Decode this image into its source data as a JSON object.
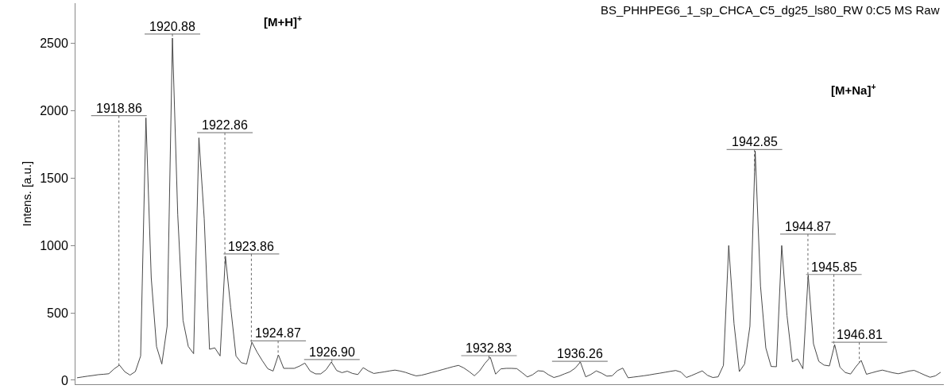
{
  "chart_data": {
    "type": "line",
    "title": "BS_PHHPEG6_1_sp_CHCA_C5_dg25_ls80_RW 0:C5 MS Raw",
    "ylabel": "Intens. [a.u.]",
    "tick_labels": "y",
    "grid": false,
    "marker": "none",
    "line_style": "solid",
    "ylim": [
      -30,
      2800
    ],
    "yticks": [
      0,
      500,
      1000,
      1500,
      2000,
      2500
    ],
    "categories": [
      null,
      null,
      null,
      null,
      null,
      null,
      null,
      null,
      null,
      null,
      null,
      null,
      null,
      null,
      null,
      null,
      null,
      null,
      null,
      null,
      null,
      null,
      null,
      null,
      null,
      null,
      null,
      null,
      null,
      null,
      null,
      null,
      null,
      null,
      null,
      null,
      null,
      null,
      null,
      null,
      null,
      null,
      null,
      null,
      null,
      null,
      null,
      null,
      null,
      null,
      null,
      null,
      null,
      null,
      null,
      null,
      null,
      null,
      null,
      null,
      null,
      null,
      null,
      null,
      null,
      null,
      null,
      null,
      null,
      null,
      null,
      null,
      null,
      null,
      null,
      null,
      null,
      null,
      null,
      null,
      null,
      null,
      null,
      null,
      null,
      null,
      null,
      null,
      null,
      null,
      null,
      null,
      null,
      null,
      null,
      null,
      null,
      null,
      null,
      null,
      null,
      null,
      null,
      null,
      null,
      null,
      null,
      null,
      null,
      null,
      null,
      null,
      null,
      null,
      null,
      null,
      null,
      null,
      null,
      null,
      null,
      null,
      null,
      null,
      null,
      null,
      null,
      null,
      null,
      null,
      null,
      null,
      null,
      null,
      null,
      null,
      null,
      null,
      null,
      null,
      null,
      null,
      null,
      null,
      null,
      null,
      null,
      null,
      null,
      null,
      null,
      null,
      null,
      null,
      null,
      null,
      null,
      null,
      null,
      null,
      null,
      null,
      null,
      null
    ],
    "series": [
      {
        "color": "#333333",
        "values": [
          18,
          24,
          30,
          35,
          41,
          44,
          48,
          84,
          112,
          63,
          38,
          64,
          180,
          1948,
          760,
          250,
          120,
          400,
          2541,
          1230,
          445,
          250,
          197,
          1800,
          1200,
          230,
          240,
          180,
          921,
          540,
          180,
          130,
          120,
          282,
          207,
          143,
          85,
          68,
          188,
          88,
          88,
          88,
          105,
          127,
          68,
          47,
          47,
          78,
          135,
          72,
          56,
          67,
          50,
          42,
          93,
          69,
          50,
          56,
          62,
          69,
          75,
          68,
          58,
          44,
          32,
          37,
          47,
          58,
          68,
          79,
          90,
          101,
          110,
          91,
          64,
          33,
          70,
          126,
          170,
          45,
          84,
          88,
          88,
          86,
          56,
          24,
          41,
          70,
          67,
          40,
          20,
          31,
          47,
          62,
          89,
          135,
          25,
          43,
          69,
          52,
          30,
          33,
          71,
          90,
          18,
          23,
          28,
          33,
          39,
          46,
          52,
          59,
          66,
          72,
          60,
          20,
          35,
          52,
          69,
          36,
          20,
          25,
          110,
          1000,
          420,
          64,
          120,
          400,
          1702,
          700,
          240,
          102,
          100,
          1000,
          480,
          137,
          158,
          85,
          781,
          270,
          140,
          112,
          106,
          264,
          96,
          57,
          46,
          100,
          147,
          44,
          55,
          66,
          75,
          65,
          55,
          48,
          57,
          68,
          73,
          56,
          38,
          22,
          32,
          59
        ]
      }
    ],
    "annotations": [
      "1918.86",
      "1920.88",
      "[M+H]$^{+}$",
      "1922.86",
      "1923.86",
      "1924.87",
      "1926.90",
      "1932.83",
      "1936.26",
      "[M+Na]$^{+}$",
      "1942.85",
      "1944.87",
      "1945.85",
      "1946.81"
    ]
  }
}
